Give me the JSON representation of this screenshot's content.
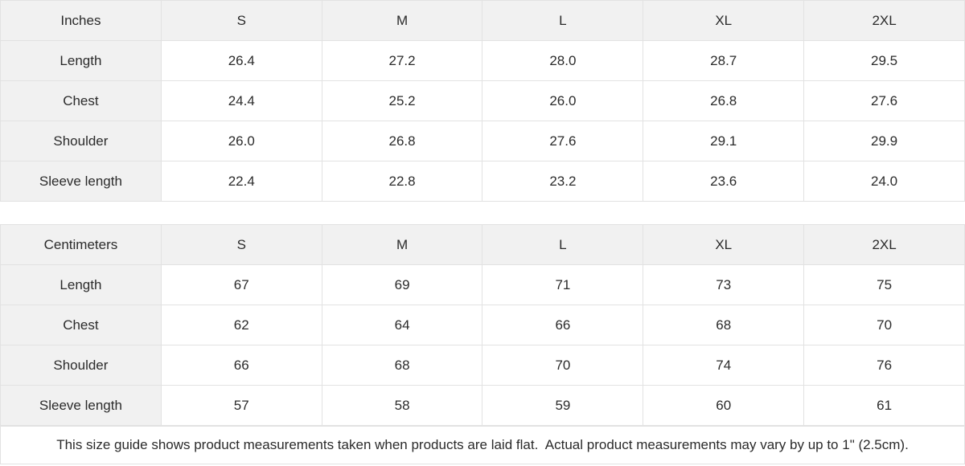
{
  "colors": {
    "header_bg": "#f1f1f1",
    "border": "#e2e2e2",
    "text": "#2b2b2b",
    "cell_bg": "#ffffff"
  },
  "tables": [
    {
      "unit_label": "Inches",
      "sizes": [
        "S",
        "M",
        "L",
        "XL",
        "2XL"
      ],
      "rows": [
        {
          "label": "Length",
          "values": [
            "26.4",
            "27.2",
            "28.0",
            "28.7",
            "29.5"
          ]
        },
        {
          "label": "Chest",
          "values": [
            "24.4",
            "25.2",
            "26.0",
            "26.8",
            "27.6"
          ]
        },
        {
          "label": "Shoulder",
          "values": [
            "26.0",
            "26.8",
            "27.6",
            "29.1",
            "29.9"
          ]
        },
        {
          "label": "Sleeve length",
          "values": [
            "22.4",
            "22.8",
            "23.2",
            "23.6",
            "24.0"
          ]
        }
      ]
    },
    {
      "unit_label": "Centimeters",
      "sizes": [
        "S",
        "M",
        "L",
        "XL",
        "2XL"
      ],
      "rows": [
        {
          "label": "Length",
          "values": [
            "67",
            "69",
            "71",
            "73",
            "75"
          ]
        },
        {
          "label": "Chest",
          "values": [
            "62",
            "64",
            "66",
            "68",
            "70"
          ]
        },
        {
          "label": "Shoulder",
          "values": [
            "66",
            "68",
            "70",
            "74",
            "76"
          ]
        },
        {
          "label": "Sleeve length",
          "values": [
            "57",
            "58",
            "59",
            "60",
            "61"
          ]
        }
      ]
    }
  ],
  "footer_note": "This size guide shows product measurements taken when products are laid flat.  Actual product measurements may vary by up to 1\" (2.5cm)."
}
